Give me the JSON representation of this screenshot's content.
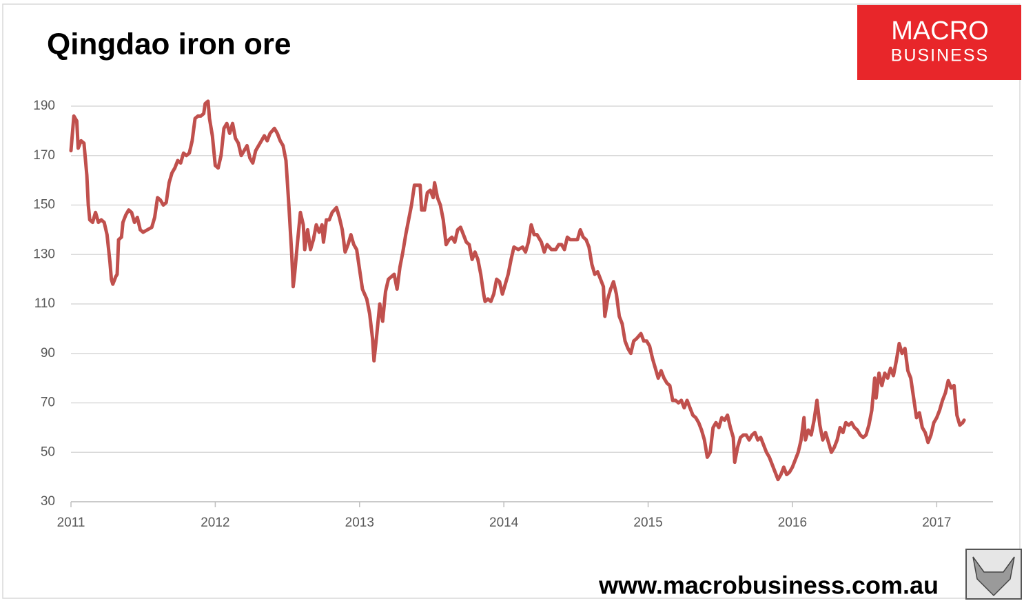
{
  "chart_data": {
    "type": "line",
    "title": "Qingdao iron ore",
    "xlim": [
      2011,
      2017.39
    ],
    "xticks": [
      2011,
      2012,
      2013,
      2014,
      2015,
      2016,
      2017
    ],
    "ylim": [
      30,
      190
    ],
    "yticks": [
      30,
      50,
      70,
      90,
      110,
      130,
      150,
      170,
      190
    ],
    "grid": true,
    "x": [
      2011.0,
      2011.02,
      2011.04,
      2011.05,
      2011.07,
      2011.09,
      2011.11,
      2011.12,
      2011.13,
      2011.15,
      2011.17,
      2011.19,
      2011.21,
      2011.23,
      2011.25,
      2011.27,
      2011.28,
      2011.29,
      2011.31,
      2011.32,
      2011.33,
      2011.35,
      2011.36,
      2011.38,
      2011.4,
      2011.42,
      2011.44,
      2011.46,
      2011.48,
      2011.5,
      2011.53,
      2011.56,
      2011.58,
      2011.6,
      2011.62,
      2011.64,
      2011.66,
      2011.68,
      2011.7,
      2011.72,
      2011.74,
      2011.76,
      2011.78,
      2011.8,
      2011.82,
      2011.84,
      2011.86,
      2011.88,
      2011.9,
      2011.92,
      2011.93,
      2011.95,
      2011.96,
      2011.98,
      2012.0,
      2012.02,
      2012.04,
      2012.06,
      2012.08,
      2012.1,
      2012.12,
      2012.14,
      2012.16,
      2012.18,
      2012.2,
      2012.22,
      2012.24,
      2012.26,
      2012.28,
      2012.3,
      2012.32,
      2012.34,
      2012.36,
      2012.38,
      2012.41,
      2012.43,
      2012.45,
      2012.47,
      2012.49,
      2012.51,
      2012.53,
      2012.54,
      2012.55,
      2012.57,
      2012.59,
      2012.61,
      2012.62,
      2012.64,
      2012.66,
      2012.68,
      2012.7,
      2012.72,
      2012.74,
      2012.75,
      2012.77,
      2012.79,
      2012.81,
      2012.84,
      2012.86,
      2012.88,
      2012.9,
      2012.92,
      2012.94,
      2012.96,
      2012.98,
      2013.02,
      2013.05,
      2013.07,
      2013.09,
      2013.1,
      2013.12,
      2013.14,
      2013.16,
      2013.18,
      2013.2,
      2013.22,
      2013.24,
      2013.26,
      2013.28,
      2013.3,
      2013.32,
      2013.34,
      2013.36,
      2013.38,
      2013.4,
      2013.42,
      2013.43,
      2013.45,
      2013.47,
      2013.49,
      2013.51,
      2013.52,
      2013.54,
      2013.56,
      2013.58,
      2013.6,
      2013.62,
      2013.64,
      2013.66,
      2013.68,
      2013.7,
      2013.72,
      2013.74,
      2013.76,
      2013.78,
      2013.8,
      2013.82,
      2013.84,
      2013.86,
      2013.87,
      2013.89,
      2013.91,
      2013.93,
      2013.95,
      2013.97,
      2013.99,
      2014.01,
      2014.03,
      2014.05,
      2014.07,
      2014.1,
      2014.13,
      2014.15,
      2014.17,
      2014.19,
      2014.21,
      2014.23,
      2014.26,
      2014.28,
      2014.3,
      2014.33,
      2014.36,
      2014.38,
      2014.4,
      2014.42,
      2014.44,
      2014.46,
      2014.49,
      2014.51,
      2014.53,
      2014.55,
      2014.57,
      2014.59,
      2014.61,
      2014.63,
      2014.65,
      2014.67,
      2014.69,
      2014.7,
      2014.72,
      2014.74,
      2014.76,
      2014.78,
      2014.8,
      2014.82,
      2014.84,
      2014.86,
      2014.88,
      2014.9,
      2014.92,
      2014.95,
      2014.97,
      2014.99,
      2015.01,
      2015.03,
      2015.05,
      2015.07,
      2015.09,
      2015.11,
      2015.13,
      2015.15,
      2015.17,
      2015.19,
      2015.21,
      2015.23,
      2015.25,
      2015.27,
      2015.29,
      2015.31,
      2015.33,
      2015.35,
      2015.37,
      2015.39,
      2015.41,
      2015.43,
      2015.45,
      2015.47,
      2015.49,
      2015.51,
      2015.53,
      2015.55,
      2015.57,
      2015.59,
      2015.6,
      2015.62,
      2015.64,
      2015.66,
      2015.68,
      2015.7,
      2015.72,
      2015.74,
      2015.76,
      2015.78,
      2015.8,
      2015.82,
      2015.84,
      2015.86,
      2015.88,
      2015.9,
      2015.92,
      2015.94,
      2015.96,
      2015.98,
      2016.0,
      2016.02,
      2016.04,
      2016.06,
      2016.08,
      2016.09,
      2016.11,
      2016.13,
      2016.15,
      2016.17,
      2016.19,
      2016.21,
      2016.23,
      2016.25,
      2016.27,
      2016.29,
      2016.31,
      2016.33,
      2016.35,
      2016.37,
      2016.39,
      2016.41,
      2016.43,
      2016.45,
      2016.47,
      2016.49,
      2016.51,
      2016.53,
      2016.55,
      2016.57,
      2016.58,
      2016.6,
      2016.62,
      2016.64,
      2016.66,
      2016.68,
      2016.7,
      2016.72,
      2016.74,
      2016.76,
      2016.78,
      2016.8,
      2016.82,
      2016.84,
      2016.86,
      2016.88,
      2016.9,
      2016.92,
      2016.94,
      2016.96,
      2016.98,
      2017.0,
      2017.02,
      2017.04,
      2017.06,
      2017.08,
      2017.1,
      2017.12,
      2017.14,
      2017.16,
      2017.18,
      2017.19
    ],
    "series": [
      {
        "color": "#c0504d",
        "values": [
          172,
          186,
          184,
          173,
          176,
          175,
          162,
          150,
          144,
          143,
          147,
          143,
          144,
          143,
          138,
          127,
          120,
          118,
          121,
          122,
          136,
          137,
          143,
          146,
          148,
          147,
          143,
          145,
          140,
          139,
          140,
          141,
          145,
          153,
          152,
          150,
          151,
          159,
          163,
          165,
          168,
          167,
          171,
          170,
          171,
          176,
          185,
          186,
          186,
          187,
          191,
          192,
          185,
          178,
          166,
          165,
          170,
          181,
          183,
          179,
          183,
          177,
          175,
          170,
          172,
          174,
          169,
          167,
          172,
          174,
          176,
          178,
          176,
          179,
          181,
          179,
          176,
          174,
          168,
          150,
          130,
          117,
          122,
          135,
          147,
          142,
          132,
          140,
          132,
          136,
          142,
          139,
          142,
          135,
          144,
          144,
          147,
          149,
          145,
          140,
          131,
          134,
          138,
          134,
          132,
          116,
          112,
          106,
          96,
          87,
          98,
          110,
          103,
          115,
          120,
          121,
          122,
          116,
          125,
          131,
          138,
          144,
          150,
          158,
          158,
          158,
          148,
          148,
          155,
          156,
          153,
          159,
          153,
          150,
          144,
          134,
          136,
          137,
          135,
          140,
          141,
          138,
          135,
          134,
          128,
          131,
          128,
          122,
          114,
          111,
          112,
          111,
          114,
          120,
          119,
          114,
          118,
          122,
          128,
          133,
          132,
          133,
          131,
          135,
          142,
          138,
          138,
          135,
          131,
          134,
          132,
          132,
          134,
          134,
          132,
          137,
          136,
          136,
          136,
          140,
          137,
          136,
          133,
          126,
          122,
          123,
          120,
          117,
          105,
          112,
          116,
          119,
          114,
          105,
          102,
          95,
          92,
          90,
          95,
          96,
          98,
          95,
          95,
          93,
          88,
          84,
          80,
          83,
          80,
          78,
          77,
          71,
          71,
          70,
          71,
          68,
          71,
          68,
          65,
          64,
          62,
          59,
          55,
          48,
          50,
          60,
          62,
          60,
          64,
          63,
          65,
          60,
          56,
          46,
          52,
          56,
          57,
          57,
          55,
          57,
          58,
          55,
          56,
          53,
          50,
          48,
          45,
          42,
          39,
          41,
          44,
          41,
          42,
          44,
          47,
          50,
          55,
          64,
          55,
          59,
          57,
          63,
          71,
          61,
          55,
          58,
          54,
          50,
          52,
          55,
          60,
          58,
          62,
          61,
          62,
          60,
          59,
          57,
          56,
          57,
          61,
          67,
          80,
          72,
          82,
          77,
          82,
          80,
          84,
          81,
          87,
          94,
          90,
          92,
          83,
          80,
          72,
          64,
          66,
          60,
          58,
          54,
          57,
          62,
          64,
          67,
          71,
          74,
          79,
          76,
          77,
          65,
          61,
          62,
          63
        ]
      }
    ]
  },
  "branding": {
    "logo_top": "MACRO",
    "logo_bottom": "BUSINESS",
    "url": "www.macrobusiness.com.au"
  }
}
